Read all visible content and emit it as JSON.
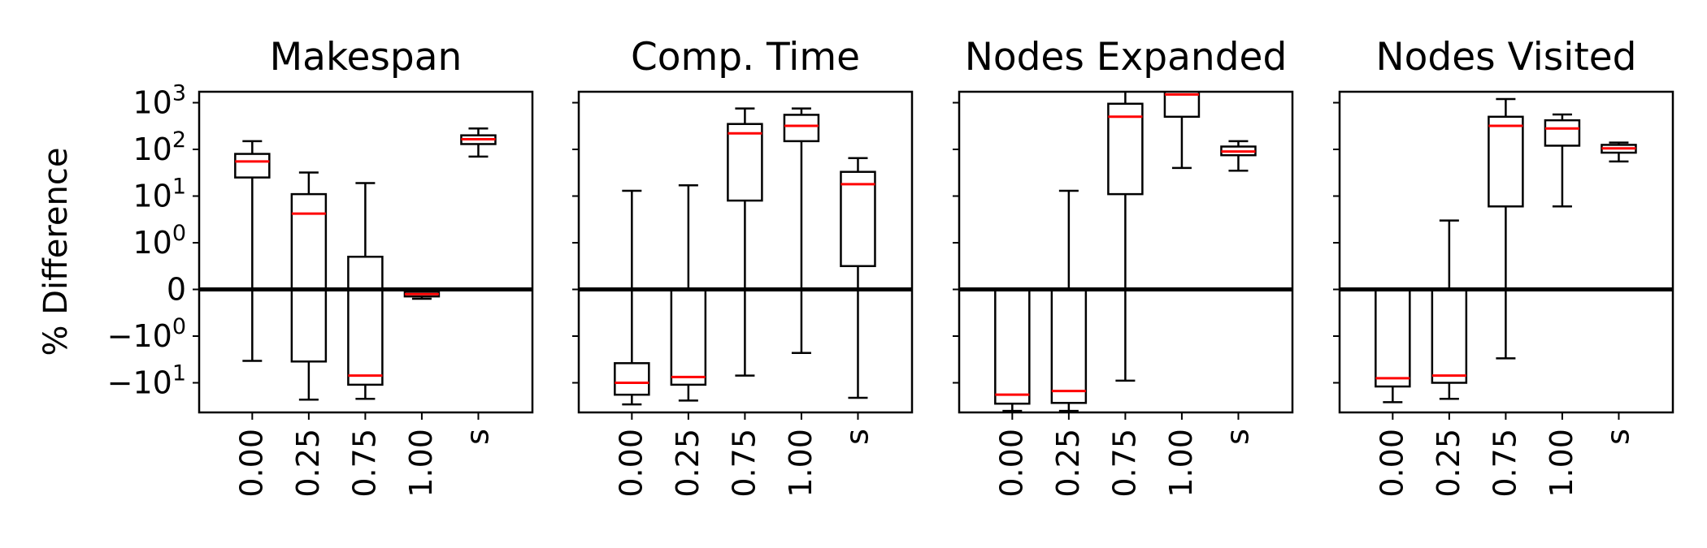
{
  "chart_data": {
    "type": "box",
    "ylabel": "% Difference",
    "yscale": "symlog",
    "ylim": [
      -40,
      2000
    ],
    "categories": [
      "0.00",
      "0.25",
      "0.75",
      "1.00",
      "s"
    ],
    "yticks": [
      {
        "value": 1000,
        "base": "10",
        "exp": "3"
      },
      {
        "value": 100,
        "base": "10",
        "exp": "2"
      },
      {
        "value": 10,
        "base": "10",
        "exp": "1"
      },
      {
        "value": 1,
        "base": "10",
        "exp": "0"
      },
      {
        "value": 0,
        "base": "0",
        "exp": ""
      },
      {
        "value": -1,
        "base": "−10",
        "exp": "0"
      },
      {
        "value": -10,
        "base": "−10",
        "exp": "1"
      }
    ],
    "colors": {
      "box": "#000000",
      "median": "#ff0000",
      "zero_line": "#000000"
    },
    "panels": [
      {
        "title": "Makespan",
        "boxes": [
          {
            "category": "0.00",
            "whislo": -3.4,
            "q1": 25,
            "median": 55,
            "q3": 80,
            "whishi": 150
          },
          {
            "category": "0.25",
            "whislo": -23,
            "q1": -3.5,
            "median": 4.2,
            "q3": 11,
            "whishi": 32
          },
          {
            "category": "0.75",
            "whislo": -22,
            "q1": -11,
            "median": -7,
            "q3": 0.7,
            "whishi": 19
          },
          {
            "category": "1.00",
            "whislo": -0.2,
            "q1": -0.15,
            "median": -0.1,
            "q3": -0.05,
            "whishi": 0
          },
          {
            "category": "s",
            "whislo": 70,
            "q1": 130,
            "median": 165,
            "q3": 200,
            "whishi": 280
          }
        ]
      },
      {
        "title": "Comp. Time",
        "boxes": [
          {
            "category": "0.00",
            "whislo": -29,
            "q1": -18,
            "median": -10,
            "q3": -3.8,
            "whishi": 13
          },
          {
            "category": "0.25",
            "whislo": -24,
            "q1": -11,
            "median": -7.5,
            "q3": 0,
            "whishi": 17
          },
          {
            "category": "0.75",
            "whislo": -7,
            "q1": 8,
            "median": 220,
            "q3": 350,
            "whishi": 750
          },
          {
            "category": "1.00",
            "whislo": -2.3,
            "q1": 150,
            "median": 320,
            "q3": 550,
            "whishi": 750
          },
          {
            "category": "s",
            "whislo": -21,
            "q1": 0.5,
            "median": 18,
            "q3": 33,
            "whishi": 65
          }
        ]
      },
      {
        "title": "Nodes Expanded",
        "boxes": [
          {
            "category": "0.00",
            "whislo": -40,
            "q1": -28,
            "median": -18,
            "q3": 0,
            "whishi": 0
          },
          {
            "category": "0.25",
            "whislo": -40,
            "q1": -27,
            "median": -15,
            "q3": 0,
            "whishi": 13
          },
          {
            "category": "0.75",
            "whislo": -9,
            "q1": 11,
            "median": 500,
            "q3": 950,
            "whishi": 2000
          },
          {
            "category": "1.00",
            "whislo": 40,
            "q1": 500,
            "median": 1500,
            "q3": 2000,
            "whishi": 2000
          },
          {
            "category": "s",
            "whislo": 35,
            "q1": 75,
            "median": 90,
            "q3": 115,
            "whishi": 150
          }
        ]
      },
      {
        "title": "Nodes Visited",
        "boxes": [
          {
            "category": "0.00",
            "whislo": -26,
            "q1": -12,
            "median": -8,
            "q3": 0,
            "whishi": 0
          },
          {
            "category": "0.25",
            "whislo": -22,
            "q1": -10,
            "median": -7,
            "q3": 0,
            "whishi": 3
          },
          {
            "category": "0.75",
            "whislo": -3,
            "q1": 6,
            "median": 320,
            "q3": 500,
            "whishi": 1200
          },
          {
            "category": "1.00",
            "whislo": 6,
            "q1": 120,
            "median": 280,
            "q3": 420,
            "whishi": 560
          },
          {
            "category": "s",
            "whislo": 55,
            "q1": 85,
            "median": 105,
            "q3": 125,
            "whishi": 140
          }
        ]
      }
    ]
  }
}
